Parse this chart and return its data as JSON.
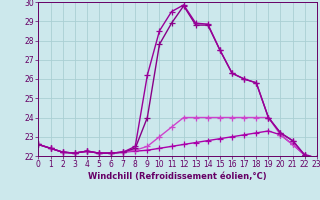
{
  "xlabel": "Windchill (Refroidissement éolien,°C)",
  "background_color": "#cce8ec",
  "grid_color": "#aacfd4",
  "xlim": [
    0,
    23
  ],
  "ylim": [
    22,
    30
  ],
  "xticks": [
    0,
    1,
    2,
    3,
    4,
    5,
    6,
    7,
    8,
    9,
    10,
    11,
    12,
    13,
    14,
    15,
    16,
    17,
    18,
    19,
    20,
    21,
    22,
    23
  ],
  "yticks": [
    22,
    23,
    24,
    25,
    26,
    27,
    28,
    29,
    30
  ],
  "curves": [
    {
      "x": [
        0,
        1,
        2,
        3,
        4,
        5,
        6,
        7,
        8,
        9,
        10,
        11,
        12,
        13,
        14,
        15,
        16,
        17,
        18,
        19,
        20,
        21,
        22,
        23
      ],
      "y": [
        22.6,
        22.4,
        22.2,
        22.15,
        22.25,
        22.15,
        22.15,
        22.2,
        22.25,
        22.3,
        22.4,
        22.5,
        22.6,
        22.7,
        22.8,
        22.9,
        23.0,
        23.1,
        23.2,
        23.3,
        23.1,
        22.6,
        22.05,
        21.9
      ],
      "color": "#aa00aa"
    },
    {
      "x": [
        0,
        1,
        2,
        3,
        4,
        5,
        6,
        7,
        8,
        9,
        10,
        11,
        12,
        13,
        14,
        15,
        16,
        17,
        18,
        19,
        20,
        21,
        22,
        23
      ],
      "y": [
        22.6,
        22.4,
        22.2,
        22.15,
        22.25,
        22.15,
        22.15,
        22.2,
        22.3,
        22.5,
        23.0,
        23.5,
        24.0,
        24.0,
        24.0,
        24.0,
        24.0,
        24.0,
        24.0,
        24.0,
        23.1,
        22.6,
        22.05,
        21.9
      ],
      "color": "#cc44cc"
    },
    {
      "x": [
        0,
        1,
        2,
        3,
        4,
        5,
        6,
        7,
        8,
        9,
        10,
        11,
        12,
        13,
        14,
        15,
        16,
        17,
        18,
        19,
        20,
        21,
        22,
        23
      ],
      "y": [
        22.6,
        22.4,
        22.2,
        22.15,
        22.25,
        22.15,
        22.15,
        22.2,
        22.4,
        24.0,
        27.8,
        28.9,
        29.8,
        28.8,
        28.8,
        27.5,
        26.3,
        26.0,
        25.8,
        24.0,
        23.2,
        22.8,
        22.05,
        21.9
      ],
      "color": "#880088"
    },
    {
      "x": [
        0,
        1,
        2,
        3,
        4,
        5,
        6,
        7,
        8,
        9,
        10,
        11,
        12,
        13,
        14,
        15,
        16,
        17,
        18,
        19,
        20,
        21,
        22,
        23
      ],
      "y": [
        22.6,
        22.4,
        22.2,
        22.15,
        22.25,
        22.15,
        22.15,
        22.2,
        22.5,
        26.2,
        28.5,
        29.5,
        29.85,
        28.9,
        28.85,
        27.5,
        26.3,
        26.0,
        25.8,
        24.0,
        23.2,
        22.8,
        22.05,
        21.9
      ],
      "color": "#990099"
    }
  ],
  "marker": "+",
  "markersize": 4,
  "markeredgewidth": 0.9,
  "lw": 1.0,
  "tick_fontsize": 5.5,
  "label_fontsize": 6.0,
  "tick_color": "#660066",
  "axis_color": "#660066",
  "spine_lw": 0.7
}
